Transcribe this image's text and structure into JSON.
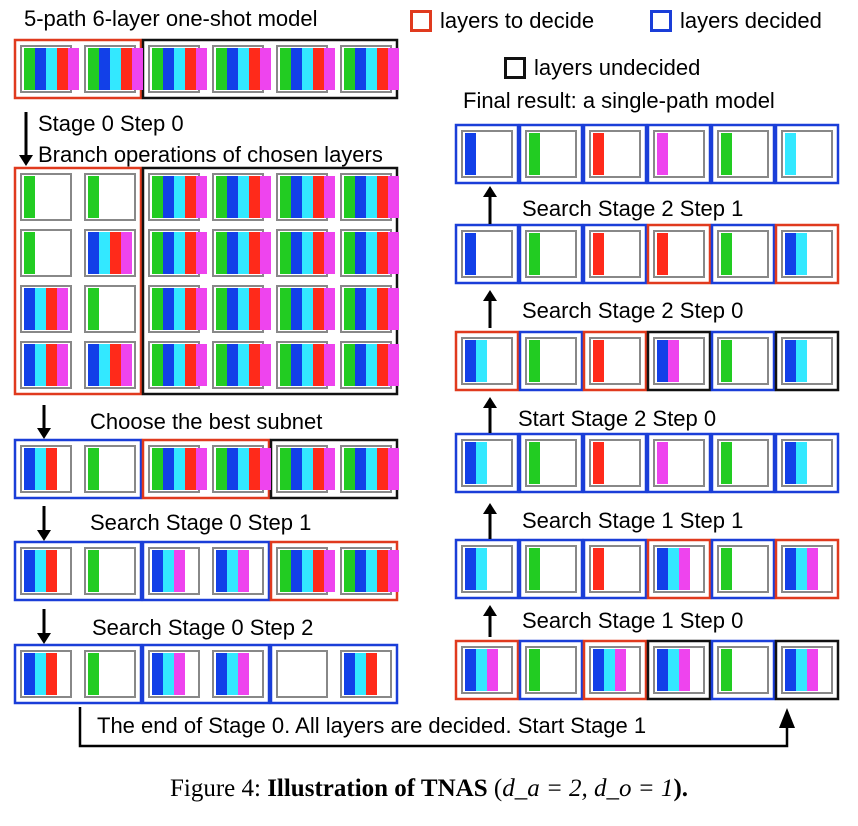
{
  "labels": {
    "title": "5-path 6-layer one-shot model",
    "legend_to_decide": "layers to decide",
    "legend_decided": "layers decided",
    "legend_undecided": "layers undecided",
    "final_result": "Final result: a single-path model",
    "stage0_step0": "Stage 0 Step 0",
    "branch_ops": "Branch operations of chosen layers",
    "choose_best": "Choose the best subnet",
    "search_s0_s1": "Search Stage 0 Step 1",
    "search_s0_s2": "Search Stage 0 Step 2",
    "end_stage0": "The end of Stage 0. All layers are decided. Start Stage 1",
    "search_s2_s1": "Search Stage 2 Step 1",
    "search_s2_s0": "Search Stage 2 Step 0",
    "start_s2_s0": "Start Stage 2 Step 0",
    "search_s1_s1": "Search Stage 1 Step 1",
    "search_s1_s0": "Search Stage 1 Step 0"
  },
  "caption": {
    "prefix": "Figure 4: ",
    "bold": "Illustration of TNAS",
    "formula_open": " (",
    "formula": "d_a = 2, d_o = 1",
    "formula_close": ")."
  },
  "colors": {
    "to_decide": "#e03a1e",
    "decided": "#1a3ed8",
    "undecided": "#111111",
    "cell_border": "#888888",
    "green": "#22cc22",
    "blue": "#1240e8",
    "cyan": "#33e8ff",
    "red": "#ff2a1a",
    "magenta": "#ee44ee"
  }
}
